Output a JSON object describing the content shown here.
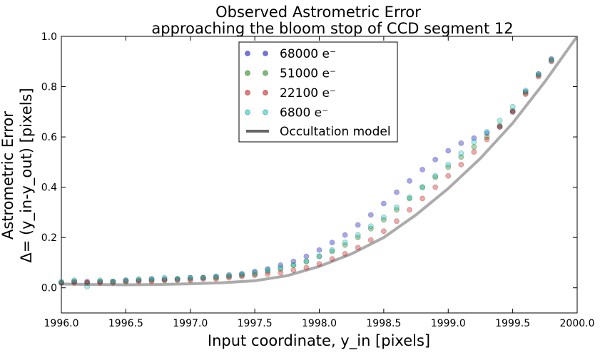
{
  "chart_data": {
    "type": "scatter",
    "title": [
      "Observed Astrometric Error",
      "approaching the bloom stop of CCD segment 12"
    ],
    "xlabel": "Input coordinate, y_in [pixels]",
    "ylabel": [
      "Astrometric Error",
      "Δ= (y_in-y_out) [pixels]"
    ],
    "xlim": [
      1996.0,
      2000.0
    ],
    "ylim": [
      -0.1,
      1.0
    ],
    "xticks": [
      "1996.0",
      "1996.5",
      "1997.0",
      "1997.5",
      "1998.0",
      "1998.5",
      "1999.0",
      "1999.5",
      "2000.0"
    ],
    "yticks": [
      "0.0",
      "0.2",
      "0.4",
      "0.6",
      "0.8",
      "1.0"
    ],
    "legend_position": "upper-center",
    "series": [
      {
        "name": "68000 e⁻",
        "color": "#0000cc",
        "x": [
          1996.0,
          1996.1,
          1996.2,
          1996.3,
          1996.4,
          1996.5,
          1996.6,
          1996.7,
          1996.8,
          1996.9,
          1997.0,
          1997.1,
          1997.2,
          1997.3,
          1997.4,
          1997.5,
          1997.6,
          1997.7,
          1997.8,
          1997.9,
          1998.0,
          1998.1,
          1998.2,
          1998.3,
          1998.4,
          1998.5,
          1998.6,
          1998.7,
          1998.8,
          1998.9,
          1999.0,
          1999.1,
          1999.2,
          1999.3,
          1999.4,
          1999.5,
          1999.6,
          1999.7,
          1999.8
        ],
        "y": [
          0.02,
          0.025,
          0.025,
          0.025,
          0.025,
          0.03,
          0.03,
          0.035,
          0.035,
          0.035,
          0.04,
          0.04,
          0.045,
          0.05,
          0.055,
          0.065,
          0.075,
          0.09,
          0.105,
          0.125,
          0.15,
          0.18,
          0.21,
          0.25,
          0.29,
          0.335,
          0.38,
          0.425,
          0.47,
          0.51,
          0.545,
          0.575,
          0.595,
          0.615,
          0.64,
          0.7,
          0.78,
          0.85,
          0.91
        ]
      },
      {
        "name": "51000 e⁻",
        "color": "#008800",
        "x": [
          1996.0,
          1996.1,
          1996.2,
          1996.3,
          1996.4,
          1996.5,
          1996.6,
          1996.7,
          1996.8,
          1996.9,
          1997.0,
          1997.1,
          1997.2,
          1997.3,
          1997.4,
          1997.5,
          1997.6,
          1997.7,
          1997.8,
          1997.9,
          1998.0,
          1998.1,
          1998.2,
          1998.3,
          1998.4,
          1998.5,
          1998.6,
          1998.7,
          1998.8,
          1998.9,
          1999.0,
          1999.1,
          1999.2,
          1999.3,
          1999.4,
          1999.5,
          1999.6,
          1999.7,
          1999.8
        ],
        "y": [
          0.02,
          0.025,
          0.02,
          0.025,
          0.025,
          0.025,
          0.03,
          0.03,
          0.03,
          0.035,
          0.035,
          0.04,
          0.04,
          0.045,
          0.05,
          0.055,
          0.065,
          0.075,
          0.09,
          0.105,
          0.125,
          0.145,
          0.17,
          0.2,
          0.235,
          0.27,
          0.31,
          0.355,
          0.4,
          0.44,
          0.48,
          0.52,
          0.56,
          0.6,
          0.645,
          0.705,
          0.775,
          0.845,
          0.905
        ]
      },
      {
        "name": "22100 e⁻",
        "color": "#dd0000",
        "x": [
          1996.0,
          1996.1,
          1996.2,
          1996.3,
          1996.4,
          1996.5,
          1996.6,
          1996.7,
          1996.8,
          1996.9,
          1997.0,
          1997.1,
          1997.2,
          1997.3,
          1997.4,
          1997.5,
          1997.6,
          1997.7,
          1997.8,
          1997.9,
          1998.0,
          1998.1,
          1998.2,
          1998.3,
          1998.4,
          1998.5,
          1998.6,
          1998.7,
          1998.8,
          1998.9,
          1999.0,
          1999.1,
          1999.2,
          1999.3,
          1999.4,
          1999.5,
          1999.6,
          1999.7,
          1999.8
        ],
        "y": [
          0.02,
          0.02,
          0.02,
          0.02,
          0.02,
          0.025,
          0.025,
          0.025,
          0.03,
          0.03,
          0.03,
          0.035,
          0.035,
          0.04,
          0.045,
          0.05,
          0.055,
          0.06,
          0.07,
          0.08,
          0.095,
          0.115,
          0.135,
          0.16,
          0.19,
          0.225,
          0.265,
          0.31,
          0.355,
          0.4,
          0.445,
          0.49,
          0.54,
          0.59,
          0.64,
          0.7,
          0.77,
          0.84,
          0.9
        ]
      },
      {
        "name": "6800 e⁻",
        "color": "#00cccc",
        "x": [
          1996.0,
          1996.1,
          1996.2,
          1996.3,
          1996.4,
          1996.5,
          1996.6,
          1996.7,
          1996.8,
          1996.9,
          1997.0,
          1997.1,
          1997.2,
          1997.3,
          1997.4,
          1997.5,
          1997.6,
          1997.7,
          1997.8,
          1997.9,
          1998.0,
          1998.1,
          1998.2,
          1998.3,
          1998.4,
          1998.5,
          1998.6,
          1998.7,
          1998.8,
          1998.9,
          1999.0,
          1999.1,
          1999.2,
          1999.3,
          1999.4,
          1999.5,
          1999.6,
          1999.7,
          1999.8
        ],
        "y": [
          0.025,
          0.03,
          0.005,
          0.03,
          0.025,
          0.03,
          0.035,
          0.035,
          0.04,
          0.035,
          0.04,
          0.04,
          0.045,
          0.05,
          0.055,
          0.06,
          0.07,
          0.08,
          0.09,
          0.105,
          0.125,
          0.15,
          0.18,
          0.21,
          0.245,
          0.28,
          0.32,
          0.36,
          0.4,
          0.445,
          0.49,
          0.535,
          0.58,
          0.62,
          0.665,
          0.72,
          0.785,
          0.85,
          0.905
        ]
      }
    ],
    "model": {
      "name": "Occultation model",
      "color": "#666666",
      "x": [
        1996.0,
        1996.25,
        1996.5,
        1996.75,
        1997.0,
        1997.25,
        1997.5,
        1997.75,
        1998.0,
        1998.25,
        1998.5,
        1998.75,
        1999.0,
        1999.25,
        1999.5,
        1999.75,
        2000.0
      ],
      "y": [
        0.015,
        0.013,
        0.012,
        0.013,
        0.016,
        0.02,
        0.028,
        0.048,
        0.085,
        0.135,
        0.2,
        0.29,
        0.395,
        0.515,
        0.655,
        0.82,
        1.0
      ]
    }
  }
}
